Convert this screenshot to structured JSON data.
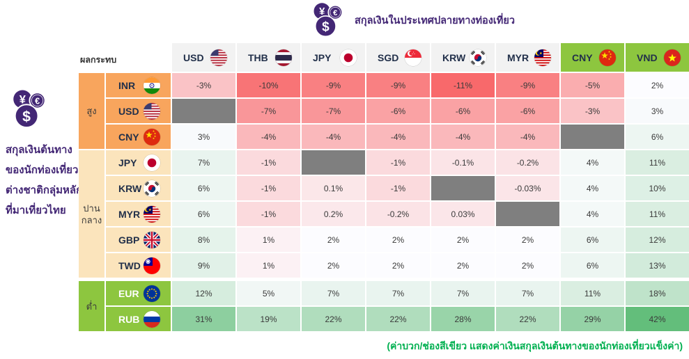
{
  "header": {
    "title": "สกุลเงินในประเทศปลายทางท่องเที่ยว",
    "icon": "currency-coins"
  },
  "left_panel": {
    "icon": "currency-coins",
    "caption_lines": [
      "สกุลเงินต้นทาง",
      "ของนักท่องเที่ยว",
      "ต่างชาติกลุ่มหลัก",
      "ที่มาเที่ยวไทย"
    ]
  },
  "matrix": {
    "corner_label": "ผลกระทบ",
    "columns": [
      {
        "code": "USD",
        "flag": "us",
        "highlight": false
      },
      {
        "code": "THB",
        "flag": "th",
        "highlight": false
      },
      {
        "code": "JPY",
        "flag": "jp",
        "highlight": false
      },
      {
        "code": "SGD",
        "flag": "sg",
        "highlight": false
      },
      {
        "code": "KRW",
        "flag": "kr",
        "highlight": false
      },
      {
        "code": "MYR",
        "flag": "my",
        "highlight": false
      },
      {
        "code": "CNY",
        "flag": "cn",
        "highlight": true
      },
      {
        "code": "VND",
        "flag": "vn",
        "highlight": true
      }
    ],
    "groups": [
      {
        "level": "high",
        "label": "สูง",
        "label_lines": [
          "สูง"
        ],
        "rows": 3
      },
      {
        "level": "medium",
        "label": "ปานกลาง",
        "label_lines": [
          "ปาน",
          "กลาง"
        ],
        "rows": 5
      },
      {
        "level": "low",
        "label": "ต่ำ",
        "label_lines": [
          "ต่ำ"
        ],
        "rows": 2
      }
    ],
    "rows": [
      {
        "code": "INR",
        "flag": "in",
        "group": "high",
        "display": [
          "-3%",
          "-10%",
          "-9%",
          "-9%",
          "-11%",
          "-9%",
          "-5%",
          "2%"
        ],
        "values": [
          -3,
          -10,
          -9,
          -9,
          -11,
          -9,
          -5,
          2
        ]
      },
      {
        "code": "USD",
        "flag": "us",
        "group": "high",
        "display": [
          null,
          "-7%",
          "-7%",
          "-6%",
          "-6%",
          "-6%",
          "-3%",
          "3%"
        ],
        "values": [
          null,
          -7,
          -7,
          -6,
          -6,
          -6,
          -3,
          3
        ]
      },
      {
        "code": "CNY",
        "flag": "cn",
        "group": "high",
        "display": [
          "3%",
          "-4%",
          "-4%",
          "-4%",
          "-4%",
          "-4%",
          null,
          "6%"
        ],
        "values": [
          3,
          -4,
          -4,
          -4,
          -4,
          -4,
          null,
          6
        ]
      },
      {
        "code": "JPY",
        "flag": "jp",
        "group": "medium",
        "display": [
          "7%",
          "-1%",
          null,
          "-1%",
          "-0.1%",
          "-0.2%",
          "4%",
          "11%"
        ],
        "values": [
          7,
          -1,
          null,
          -1,
          -0.1,
          -0.2,
          4,
          11
        ]
      },
      {
        "code": "KRW",
        "flag": "kr",
        "group": "medium",
        "display": [
          "6%",
          "-1%",
          "0.1%",
          "-1%",
          null,
          "-0.03%",
          "4%",
          "10%"
        ],
        "values": [
          6,
          -1,
          0.1,
          -1,
          null,
          -0.03,
          4,
          10
        ]
      },
      {
        "code": "MYR",
        "flag": "my",
        "group": "medium",
        "display": [
          "6%",
          "-1%",
          "0.2%",
          "-0.2%",
          "0.03%",
          null,
          "4%",
          "11%"
        ],
        "values": [
          6,
          -1,
          0.2,
          -0.2,
          0.03,
          null,
          4,
          11
        ]
      },
      {
        "code": "GBP",
        "flag": "gb",
        "group": "medium",
        "display": [
          "8%",
          "1%",
          "2%",
          "2%",
          "2%",
          "2%",
          "6%",
          "12%"
        ],
        "values": [
          8,
          1,
          2,
          2,
          2,
          2,
          6,
          12
        ]
      },
      {
        "code": "TWD",
        "flag": "tw",
        "group": "medium",
        "display": [
          "9%",
          "1%",
          "2%",
          "2%",
          "2%",
          "2%",
          "6%",
          "13%"
        ],
        "values": [
          9,
          1,
          2,
          2,
          2,
          2,
          6,
          13
        ]
      },
      {
        "code": "EUR",
        "flag": "eu",
        "group": "low",
        "display": [
          "12%",
          "5%",
          "7%",
          "7%",
          "7%",
          "7%",
          "11%",
          "18%"
        ],
        "values": [
          12,
          5,
          7,
          7,
          7,
          7,
          11,
          18
        ]
      },
      {
        "code": "RUB",
        "flag": "ru",
        "group": "low",
        "display": [
          "31%",
          "19%",
          "22%",
          "22%",
          "28%",
          "22%",
          "29%",
          "42%"
        ],
        "values": [
          31,
          19,
          22,
          22,
          28,
          22,
          29,
          42
        ]
      }
    ]
  },
  "footer": {
    "note": "(ค่าบวก/ช่องสีเขียว  แสดงค่าเงินสกุลเงินต้นทางของนักท่องเที่ยวแข็งค่า)"
  },
  "colors": {
    "scale_min": "#F8696B",
    "scale_mid": "#FCFCFF",
    "scale_max": "#63BE7B",
    "diagonal_cell": "#7F7F7F",
    "header_default": "#F2F2F2",
    "header_highlight": "#8DC63F",
    "group_high": "#F8A55D",
    "group_medium": "#FBE4BC",
    "group_low": "#8DC63F",
    "accent_purple": "#432775",
    "note_green": "#00B050"
  },
  "chart_data": {
    "type": "heatmap",
    "title": "สกุลเงินในประเทศปลายทางท่องเที่ยว",
    "ylabel": "สกุลเงินต้นทาง ของนักท่องเที่ยว ต่างชาติกลุ่มหลัก ที่มาเที่ยวไทย",
    "xlabel": "สกุลเงินในประเทศปลายทางท่องเที่ยว",
    "row_axis_title": "ผลกระทบ",
    "x": [
      "USD",
      "THB",
      "JPY",
      "SGD",
      "KRW",
      "MYR",
      "CNY",
      "VND"
    ],
    "y": [
      "INR",
      "USD",
      "CNY",
      "JPY",
      "KRW",
      "MYR",
      "GBP",
      "TWD",
      "EUR",
      "RUB"
    ],
    "impact_levels": {
      "INR": "สูง",
      "USD": "สูง",
      "CNY": "สูง",
      "JPY": "ปานกลาง",
      "KRW": "ปานกลาง",
      "MYR": "ปานกลาง",
      "GBP": "ปานกลาง",
      "TWD": "ปานกลาง",
      "EUR": "ต่ำ",
      "RUB": "ต่ำ"
    },
    "highlighted_columns": [
      "CNY",
      "VND"
    ],
    "values_percent": [
      [
        -3,
        -10,
        -9,
        -9,
        -11,
        -9,
        -5,
        2
      ],
      [
        null,
        -7,
        -7,
        -6,
        -6,
        -6,
        -3,
        3
      ],
      [
        3,
        -4,
        -4,
        -4,
        -4,
        -4,
        null,
        6
      ],
      [
        7,
        -1,
        null,
        -1,
        -0.1,
        -0.2,
        4,
        11
      ],
      [
        6,
        -1,
        0.1,
        -1,
        null,
        -0.03,
        4,
        10
      ],
      [
        6,
        -1,
        0.2,
        -0.2,
        0.03,
        null,
        4,
        11
      ],
      [
        8,
        1,
        2,
        2,
        2,
        2,
        6,
        12
      ],
      [
        9,
        1,
        2,
        2,
        2,
        2,
        6,
        13
      ],
      [
        12,
        5,
        7,
        7,
        7,
        7,
        11,
        18
      ],
      [
        31,
        19,
        22,
        22,
        28,
        22,
        29,
        42
      ]
    ],
    "color_scale": {
      "min_color": "#F8696B",
      "mid_color": "#FCFCFF",
      "max_color": "#63BE7B",
      "domain": [
        -11,
        2,
        42
      ]
    },
    "note": "(ค่าบวก/ช่องสีเขียว  แสดงค่าเงินสกุลเงินต้นทางของนักท่องเที่ยวแข็งค่า)",
    "legend_position": "none",
    "grid": false
  }
}
